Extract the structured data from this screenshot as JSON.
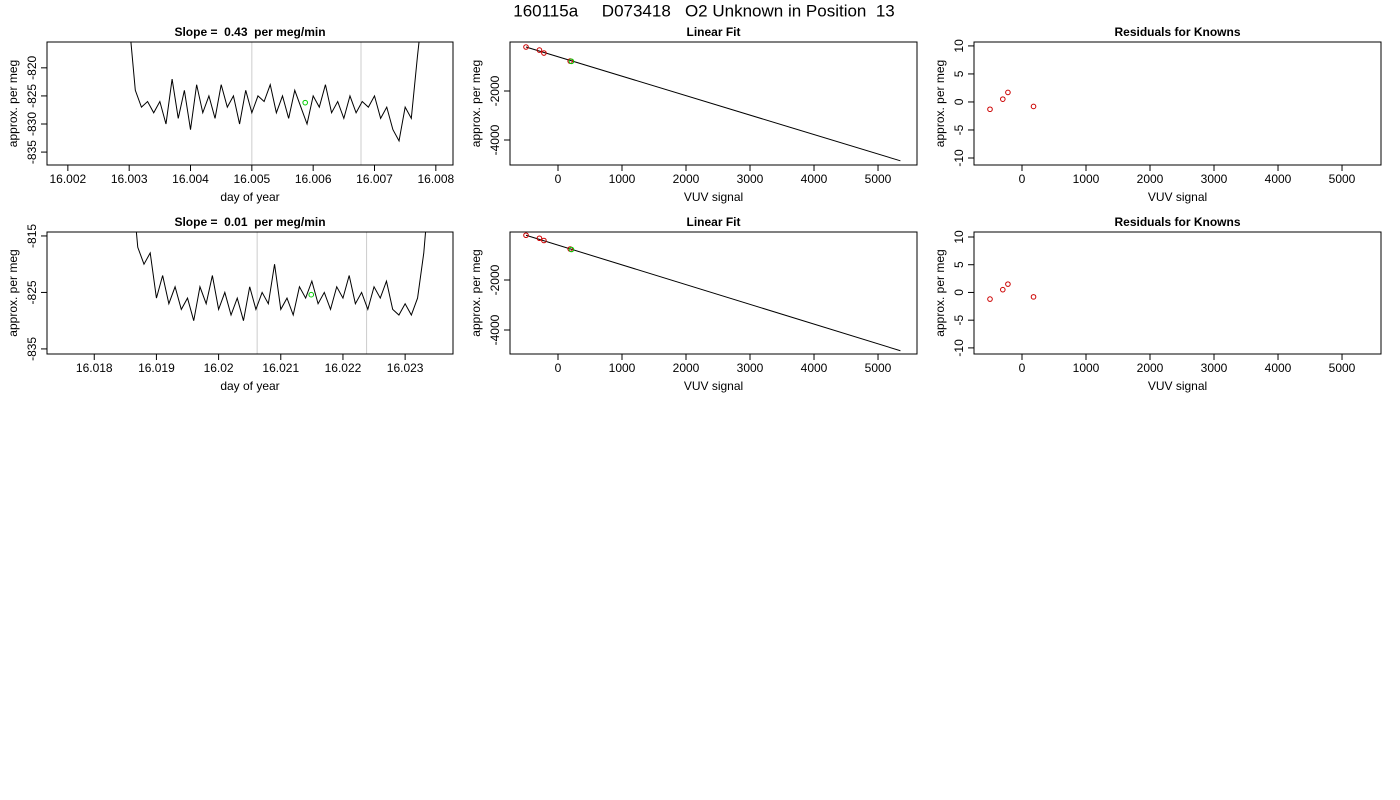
{
  "title": "160115a     D073418   O2 Unknown in Position  13",
  "chart_data": [
    {
      "type": "line",
      "title": "Slope =  0.43  per meg/min",
      "xlabel": "day of year",
      "ylabel": "approx. per meg",
      "xlim": [
        16.00166,
        16.00828
      ],
      "ylim": [
        -837.3,
        -815.4
      ],
      "xticks": [
        16.002,
        16.003,
        16.004,
        16.005,
        16.006,
        16.007,
        16.008
      ],
      "yticks": [
        -835,
        -830,
        -825,
        -820
      ],
      "vlines": [
        16.005,
        16.00678
      ],
      "vline_color": "#cccccc",
      "series": [
        {
          "color": "#000000",
          "mode": "line",
          "x": [
            16.003,
            16.0031,
            16.0032,
            16.0033,
            16.0034,
            16.0035,
            16.0036,
            16.0037,
            16.0038,
            16.0039,
            16.004,
            16.0041,
            16.0042,
            16.0043,
            16.0044,
            16.0045,
            16.0046,
            16.0047,
            16.0048,
            16.0049,
            16.005,
            16.0051,
            16.0052,
            16.0053,
            16.0054,
            16.0055,
            16.0056,
            16.0057,
            16.0058,
            16.0059,
            16.006,
            16.0061,
            16.0062,
            16.0063,
            16.0064,
            16.0065,
            16.0066,
            16.0067,
            16.0068,
            16.0069,
            16.007,
            16.0071,
            16.0072,
            16.0073,
            16.0074,
            16.0075,
            16.0076,
            16.0077,
            16.0078
          ],
          "values": [
            -812,
            -824,
            -827,
            -826,
            -828,
            -826,
            -830,
            -822,
            -829,
            -824,
            -831,
            -823,
            -828,
            -825,
            -829,
            -823,
            -827,
            -825,
            -830,
            -824,
            -828,
            -825,
            -826,
            -823,
            -828,
            -825,
            -829,
            -824,
            -827,
            -830,
            -825,
            -827,
            -823,
            -828,
            -826,
            -829,
            -825,
            -828,
            -826,
            -827,
            -825,
            -829,
            -827,
            -831,
            -833,
            -827,
            -829,
            -818,
            -808
          ]
        },
        {
          "color": "#00cc00",
          "mode": "points",
          "x": [
            16.00587
          ],
          "values": [
            -826.2
          ]
        }
      ]
    },
    {
      "type": "scatter",
      "title": "Linear Fit",
      "xlabel": "VUV signal",
      "ylabel": "approx. per meg",
      "xlim": [
        -750,
        5609
      ],
      "ylim": [
        -5020,
        0
      ],
      "xticks": [
        0,
        1000,
        2000,
        3000,
        4000,
        5000
      ],
      "yticks": [
        -4000,
        -2000
      ],
      "series": [
        {
          "color": "#000000",
          "mode": "line",
          "x": [
            -500,
            5350
          ],
          "values": [
            -204,
            -4850
          ]
        },
        {
          "color": "#cc0000",
          "mode": "points",
          "x": [
            -500,
            -290,
            -220,
            190
          ],
          "values": [
            -204,
            -330,
            -450,
            -780
          ]
        },
        {
          "color": "#00cc00",
          "mode": "points",
          "x": [
            210
          ],
          "values": [
            -790
          ]
        }
      ]
    },
    {
      "type": "scatter",
      "title": "Residuals for Knowns",
      "xlabel": "VUV signal",
      "ylabel": "approx. per meg",
      "xlim": [
        -750,
        5609
      ],
      "ylim": [
        -11.25,
        10.7
      ],
      "xticks": [
        0,
        1000,
        2000,
        3000,
        4000,
        5000
      ],
      "yticks": [
        -10,
        -5,
        0,
        5,
        10
      ],
      "series": [
        {
          "color": "#cc0000",
          "mode": "points",
          "x": [
            -500,
            -300,
            -220,
            180
          ],
          "values": [
            -1.3,
            0.5,
            1.7,
            -0.8
          ]
        }
      ]
    },
    {
      "type": "line",
      "title": "Slope =  0.01  per meg/min",
      "xlabel": "day of year",
      "ylabel": "approx. per meg",
      "xlim": [
        16.01724,
        16.02377
      ],
      "ylim": [
        -835.9,
        -814.3
      ],
      "xticks": [
        16.018,
        16.019,
        16.02,
        16.021,
        16.022,
        16.023
      ],
      "yticks": [
        -835,
        -825,
        -815
      ],
      "vlines": [
        16.02062,
        16.02238
      ],
      "vline_color": "#cccccc",
      "series": [
        {
          "color": "#000000",
          "mode": "line",
          "x": [
            16.0186,
            16.0187,
            16.0188,
            16.0189,
            16.019,
            16.0191,
            16.0192,
            16.0193,
            16.0194,
            16.0195,
            16.0196,
            16.0197,
            16.0198,
            16.0199,
            16.02,
            16.0201,
            16.0202,
            16.0203,
            16.0204,
            16.0205,
            16.0206,
            16.0207,
            16.0208,
            16.0209,
            16.021,
            16.0211,
            16.0212,
            16.0213,
            16.0214,
            16.0215,
            16.0216,
            16.0217,
            16.0218,
            16.0219,
            16.022,
            16.0221,
            16.0222,
            16.0223,
            16.0224,
            16.0225,
            16.0226,
            16.0227,
            16.0228,
            16.0229,
            16.023,
            16.0231,
            16.0232,
            16.0233,
            16.0234
          ],
          "values": [
            -805,
            -817,
            -820,
            -818,
            -826,
            -822,
            -827,
            -824,
            -828,
            -826,
            -830,
            -824,
            -827,
            -822,
            -828,
            -825,
            -829,
            -826,
            -830,
            -824,
            -828,
            -825,
            -827,
            -820,
            -828,
            -826,
            -829,
            -824,
            -826,
            -823,
            -827,
            -825,
            -828,
            -824,
            -826,
            -822,
            -827,
            -825,
            -828,
            -824,
            -826,
            -823,
            -828,
            -829,
            -827,
            -829,
            -826,
            -818,
            -805
          ]
        },
        {
          "color": "#00cc00",
          "mode": "points",
          "x": [
            16.02149
          ],
          "values": [
            -825.4
          ]
        }
      ]
    },
    {
      "type": "scatter",
      "title": "Linear Fit",
      "xlabel": "VUV signal",
      "ylabel": "approx. per meg",
      "xlim": [
        -750,
        5609
      ],
      "ylim": [
        -4960,
        -80
      ],
      "xticks": [
        0,
        1000,
        2000,
        3000,
        4000,
        5000
      ],
      "yticks": [
        -4000,
        -2000
      ],
      "series": [
        {
          "color": "#000000",
          "mode": "line",
          "x": [
            -500,
            5350
          ],
          "values": [
            -210,
            -4830
          ]
        },
        {
          "color": "#cc0000",
          "mode": "points",
          "x": [
            -500,
            -290,
            -220,
            190
          ],
          "values": [
            -210,
            -330,
            -420,
            -760
          ]
        },
        {
          "color": "#00cc00",
          "mode": "points",
          "x": [
            210
          ],
          "values": [
            -780
          ]
        }
      ]
    },
    {
      "type": "scatter",
      "title": "Residuals for Knowns",
      "xlabel": "VUV signal",
      "ylabel": "approx. per meg",
      "xlim": [
        -750,
        5609
      ],
      "ylim": [
        -11.1,
        10.9
      ],
      "xticks": [
        0,
        1000,
        2000,
        3000,
        4000,
        5000
      ],
      "yticks": [
        -10,
        -5,
        0,
        5,
        10
      ],
      "series": [
        {
          "color": "#cc0000",
          "mode": "points",
          "x": [
            -500,
            -300,
            -220,
            180
          ],
          "values": [
            -1.2,
            0.5,
            1.5,
            -0.8
          ]
        }
      ]
    }
  ]
}
